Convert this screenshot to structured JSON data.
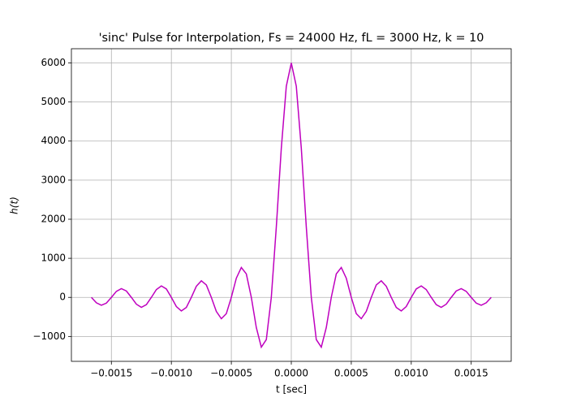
{
  "chart_data": {
    "type": "line",
    "title": "'sinc' Pulse for Interpolation, Fs = 24000 Hz, fL = 3000 Hz, k = 10",
    "x_label": "t [sec]",
    "y_label": "h(t)",
    "x": [
      -0.0016667,
      -0.001625,
      -0.0015833,
      -0.0015417,
      -0.0015,
      -0.0014583,
      -0.0014167,
      -0.001375,
      -0.0013333,
      -0.0012917,
      -0.00125,
      -0.0012083,
      -0.0011667,
      -0.001125,
      -0.0010833,
      -0.0010417,
      -0.001,
      -0.0009583,
      -0.0009167,
      -0.000875,
      -0.0008333,
      -0.0007917,
      -0.00075,
      -0.0007083,
      -0.0006667,
      -0.000625,
      -0.0005833,
      -0.0005417,
      -0.0005,
      -0.0004583,
      -0.0004167,
      -0.000375,
      -0.0003333,
      -0.0002917,
      -0.00025,
      -0.0002083,
      -0.0001667,
      -0.000125,
      -8.33e-05,
      -4.17e-05,
      0,
      4.17e-05,
      8.33e-05,
      0.000125,
      0.0001667,
      0.0002083,
      0.00025,
      0.0002917,
      0.0003333,
      0.000375,
      0.0004167,
      0.0004583,
      0.0005,
      0.0005417,
      0.0005833,
      0.000625,
      0.0006667,
      0.0007083,
      0.00075,
      0.0007917,
      0.0008333,
      0.000875,
      0.0009167,
      0.0009583,
      0.001,
      0.0010417,
      0.0010833,
      0.001125,
      0.0011667,
      0.0012083,
      0.00125,
      0.0012917,
      0.0013333,
      0.001375,
      0.0014167,
      0.0014583,
      0.0015,
      0.0015417,
      0.0015833,
      0.001625,
      0.0016667
    ],
    "series": [
      {
        "color": "#bf00bf",
        "values": [
          0,
          -138.5,
          -201.0,
          -146.0,
          0,
          154.3,
          224.7,
          163.7,
          0,
          -174.3,
          -254.6,
          -186.3,
          0,
          200.1,
          293.8,
          216.1,
          0,
          -234.9,
          -347.2,
          -257.2,
          0,
          284.3,
          424.4,
          317.8,
          0,
          -360.1,
          -545.7,
          -415.5,
          0,
          491.1,
          763.9,
          600.2,
          0,
          -771.7,
          -1273.2,
          -1080.4,
          0,
          1800.7,
          3819.7,
          5402.0,
          6000,
          5402.0,
          3819.7,
          1800.7,
          0,
          -1080.4,
          -1273.2,
          -771.7,
          0,
          600.2,
          763.9,
          491.1,
          0,
          -415.5,
          -545.7,
          -360.1,
          0,
          317.8,
          424.4,
          284.3,
          0,
          -257.2,
          -347.2,
          -234.9,
          0,
          216.1,
          293.8,
          200.1,
          0,
          -186.3,
          -254.6,
          -174.3,
          0,
          163.7,
          224.7,
          154.3,
          0,
          -146.0,
          -201.0,
          -138.5,
          0
        ]
      }
    ],
    "xlim": [
      -0.0018333,
      0.0018333
    ],
    "xticks": [
      {
        "value": -0.0015,
        "label": "−0.0015"
      },
      {
        "value": -0.001,
        "label": "−0.0010"
      },
      {
        "value": -0.0005,
        "label": "−0.0005"
      },
      {
        "value": 0,
        "label": "0.0000"
      },
      {
        "value": 0.0005,
        "label": "0.0005"
      },
      {
        "value": 0.001,
        "label": "0.0010"
      },
      {
        "value": 0.0015,
        "label": "0.0015"
      }
    ],
    "ylim": [
      -1636.9,
      6363.7
    ],
    "yticks": [
      {
        "value": -1000,
        "label": "−1000"
      },
      0,
      1000,
      2000,
      3000,
      4000,
      5000,
      6000
    ],
    "grid": true
  }
}
